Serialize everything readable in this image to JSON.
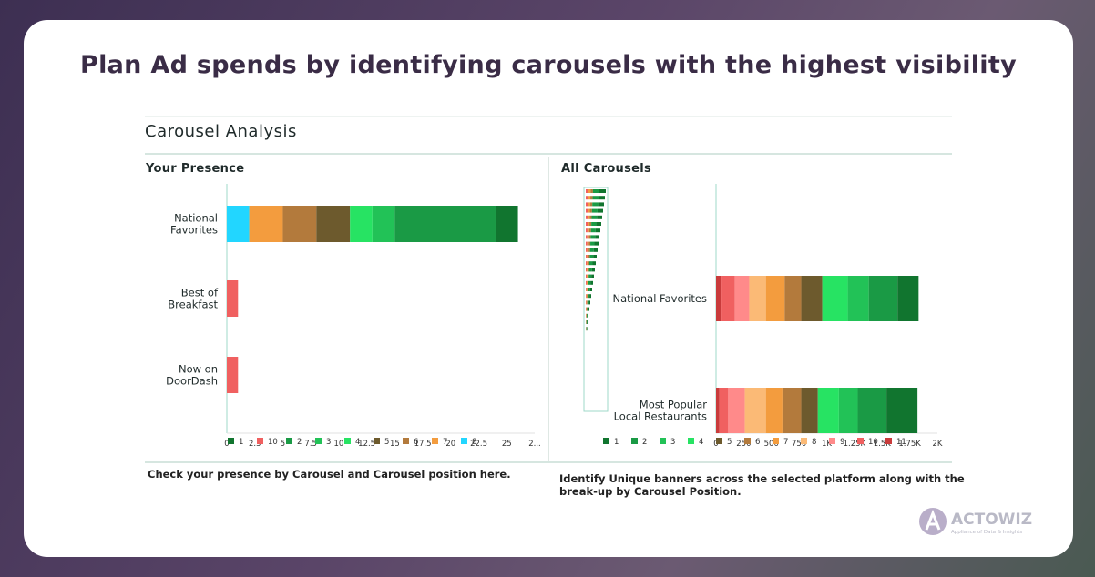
{
  "headline": "Plan Ad spends by identifying carousels with the highest visibility",
  "panel_title": "Carousel Analysis",
  "left": {
    "subtitle": "Your Presence",
    "caption": "Check your presence by Carousel and Carousel position here."
  },
  "right": {
    "subtitle": "All Carousels",
    "caption_line1": "Identify Unique banners across the selected platform along with the",
    "caption_line2": "break-up by Carousel Position."
  },
  "logo": {
    "name": "ACTOWIZ",
    "tagline": "Appliance of Data & Insights"
  },
  "colors": {
    "1": "#11752f",
    "2": "#1a9a45",
    "3": "#22c257",
    "4": "#27e363",
    "5": "#6d5a2d",
    "6": "#b37a3c",
    "7": "#f39c3e",
    "8": "#fbba76",
    "9": "#ff8a8a",
    "10": "#f06060",
    "11": "#c93b3b",
    "p8": "#22d6ff"
  },
  "chart_data": [
    {
      "type": "bar",
      "orientation": "horizontal",
      "stacked": true,
      "title": "Your Presence",
      "categories": [
        "National Favorites",
        "Best of Breakfast",
        "Now on DoorDash"
      ],
      "category_labels": [
        [
          "National",
          "Favorites"
        ],
        [
          "Best of",
          "Breakfast"
        ],
        [
          "Now on",
          "DoorDash"
        ]
      ],
      "xlim": [
        0,
        27.5
      ],
      "xticks": [
        "0",
        "2.5",
        "5",
        "7.5",
        "10",
        "12.5",
        "15",
        "17.5",
        "20",
        "22.5",
        "25",
        "2..."
      ],
      "legend": [
        {
          "label": "1",
          "key": "1"
        },
        {
          "label": "10",
          "key": "10"
        },
        {
          "label": "2",
          "key": "2"
        },
        {
          "label": "3",
          "key": "3"
        },
        {
          "label": "4",
          "key": "4"
        },
        {
          "label": "5",
          "key": "5"
        },
        {
          "label": "6",
          "key": "6"
        },
        {
          "label": "7",
          "key": "7"
        },
        {
          "label": "8",
          "key": "p8"
        }
      ],
      "stacks": [
        [
          {
            "key": "p8",
            "value": 2
          },
          {
            "key": "7",
            "value": 3
          },
          {
            "key": "6",
            "value": 3
          },
          {
            "key": "5",
            "value": 3
          },
          {
            "key": "4",
            "value": 2
          },
          {
            "key": "3",
            "value": 2
          },
          {
            "key": "2",
            "value": 9
          },
          {
            "key": "1",
            "value": 2
          }
        ],
        [
          {
            "key": "10",
            "value": 1
          }
        ],
        [
          {
            "key": "10",
            "value": 1
          }
        ]
      ]
    },
    {
      "type": "bar",
      "orientation": "horizontal",
      "stacked": true,
      "title": "All Carousels",
      "categories": [
        "National Favorites",
        "Most Popular Local Restaurants"
      ],
      "category_labels": [
        [
          "National Favorites"
        ],
        [
          "Most Popular",
          "Local Restaurants"
        ]
      ],
      "xlim": [
        0,
        2000
      ],
      "xticks": [
        "0",
        "250",
        "500",
        "750",
        "1K",
        "1.25K",
        "1.5K",
        "1.75K",
        "2K"
      ],
      "legend": [
        {
          "label": "1",
          "key": "1"
        },
        {
          "label": "2",
          "key": "2"
        },
        {
          "label": "3",
          "key": "3"
        },
        {
          "label": "4",
          "key": "4"
        },
        {
          "label": "5",
          "key": "5"
        },
        {
          "label": "6",
          "key": "6"
        },
        {
          "label": "7",
          "key": "7"
        },
        {
          "label": "8",
          "key": "8"
        },
        {
          "label": "9",
          "key": "9"
        },
        {
          "label": "10",
          "key": "10"
        },
        {
          "label": "11",
          "key": "11"
        }
      ],
      "stacks": [
        [
          {
            "key": "11",
            "value": 50
          },
          {
            "key": "10",
            "value": 120
          },
          {
            "key": "9",
            "value": 130
          },
          {
            "key": "8",
            "value": 150
          },
          {
            "key": "7",
            "value": 170
          },
          {
            "key": "6",
            "value": 150
          },
          {
            "key": "5",
            "value": 190
          },
          {
            "key": "4",
            "value": 230
          },
          {
            "key": "3",
            "value": 190
          },
          {
            "key": "2",
            "value": 260
          },
          {
            "key": "1",
            "value": 190
          }
        ],
        [
          {
            "key": "11",
            "value": 30
          },
          {
            "key": "10",
            "value": 80
          },
          {
            "key": "9",
            "value": 150
          },
          {
            "key": "8",
            "value": 190
          },
          {
            "key": "7",
            "value": 150
          },
          {
            "key": "6",
            "value": 170
          },
          {
            "key": "5",
            "value": 150
          },
          {
            "key": "4",
            "value": 190
          },
          {
            "key": "3",
            "value": 170
          },
          {
            "key": "2",
            "value": 260
          },
          {
            "key": "1",
            "value": 280
          }
        ]
      ],
      "overview_rows": 22
    }
  ]
}
